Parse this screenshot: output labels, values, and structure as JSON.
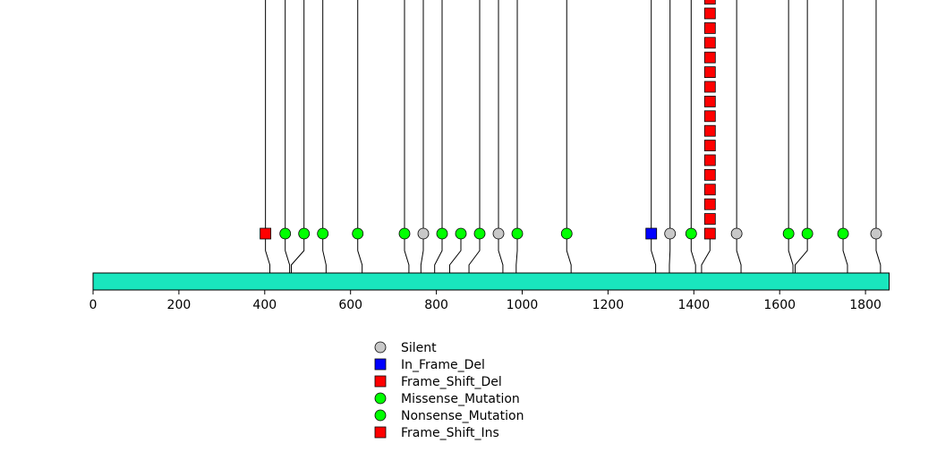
{
  "chart_data": {
    "type": "lollipop",
    "protein_bar_color": "#19E6BE",
    "x_range": [
      0,
      1855
    ],
    "x_ticks": [
      0,
      200,
      400,
      600,
      800,
      1000,
      1200,
      1400,
      1600,
      1800
    ],
    "colors": {
      "Silent": "#C8C8C8",
      "In_Frame_Del": "#0000FF",
      "Frame_Shift_Del": "#FF0000",
      "Missense_Mutation": "#00FF00",
      "Nonsense_Mutation": "#00FF00",
      "Frame_Shift_Ins": "#FF0000"
    },
    "legend": [
      {
        "label": "Silent",
        "shape": "circle",
        "type": "Silent"
      },
      {
        "label": "In_Frame_Del",
        "shape": "square",
        "type": "In_Frame_Del"
      },
      {
        "label": "Frame_Shift_Del",
        "shape": "square",
        "type": "Frame_Shift_Del"
      },
      {
        "label": "Missense_Mutation",
        "shape": "circle",
        "type": "Missense_Mutation"
      },
      {
        "label": "Nonsense_Mutation",
        "shape": "circle",
        "type": "Nonsense_Mutation"
      },
      {
        "label": "Frame_Shift_Ins",
        "shape": "square",
        "type": "Frame_Shift_Ins"
      }
    ],
    "mutations": [
      {
        "position": 412,
        "type": "Frame_Shift_Del",
        "count": 1
      },
      {
        "position": 458,
        "type": "Missense_Mutation",
        "count": 1
      },
      {
        "position": 462,
        "type": "Missense_Mutation",
        "count": 1
      },
      {
        "position": 543,
        "type": "Missense_Mutation",
        "count": 1
      },
      {
        "position": 627,
        "type": "Missense_Mutation",
        "count": 1
      },
      {
        "position": 736,
        "type": "Missense_Mutation",
        "count": 1
      },
      {
        "position": 764,
        "type": "Silent",
        "count": 1
      },
      {
        "position": 796,
        "type": "Missense_Mutation",
        "count": 1
      },
      {
        "position": 831,
        "type": "Missense_Mutation",
        "count": 1
      },
      {
        "position": 876,
        "type": "Missense_Mutation",
        "count": 1
      },
      {
        "position": 955,
        "type": "Silent",
        "count": 1
      },
      {
        "position": 986,
        "type": "Missense_Mutation",
        "count": 1
      },
      {
        "position": 1114,
        "type": "Missense_Mutation",
        "count": 1
      },
      {
        "position": 1311,
        "type": "In_Frame_Del",
        "count": 1
      },
      {
        "position": 1343,
        "type": "Silent",
        "count": 1
      },
      {
        "position": 1404,
        "type": "Missense_Mutation",
        "count": 1
      },
      {
        "position": 1418,
        "type": "Frame_Shift_Del",
        "count": 17
      },
      {
        "position": 1510,
        "type": "Silent",
        "count": 1
      },
      {
        "position": 1631,
        "type": "Missense_Mutation",
        "count": 1
      },
      {
        "position": 1636,
        "type": "Missense_Mutation",
        "count": 1
      },
      {
        "position": 1758,
        "type": "Missense_Mutation",
        "count": 1
      },
      {
        "position": 1835,
        "type": "Silent",
        "count": 1
      }
    ],
    "offscale_lines": [
      {
        "position": 412
      },
      {
        "position": 458
      },
      {
        "position": 462
      },
      {
        "position": 543
      },
      {
        "position": 627
      },
      {
        "position": 736
      },
      {
        "position": 764
      },
      {
        "position": 796
      },
      {
        "position": 876
      },
      {
        "position": 955
      },
      {
        "position": 986
      },
      {
        "position": 1114
      },
      {
        "position": 1311
      },
      {
        "position": 1343
      },
      {
        "position": 1404
      },
      {
        "position": 1418
      },
      {
        "position": 1510
      },
      {
        "position": 1631
      },
      {
        "position": 1636
      },
      {
        "position": 1758
      },
      {
        "position": 1835
      }
    ]
  }
}
